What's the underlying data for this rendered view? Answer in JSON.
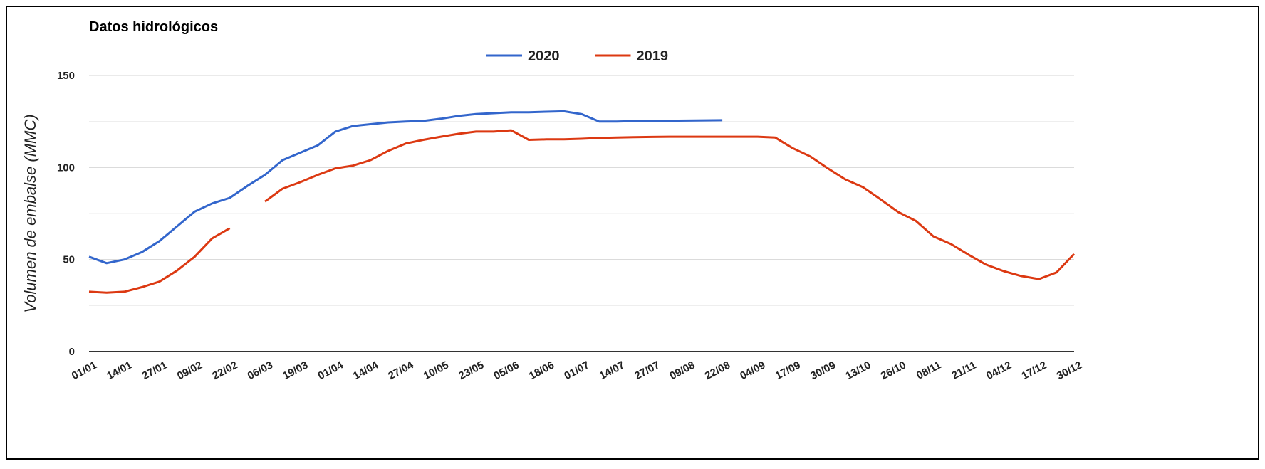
{
  "chart_data": {
    "type": "line",
    "title": "Datos hidrológicos",
    "y_label": "Volumen de embalse (MMC)",
    "categories": [
      "01/01",
      null,
      "14/01",
      null,
      "27/01",
      null,
      "09/02",
      null,
      "22/02",
      null,
      "06/03",
      null,
      "19/03",
      null,
      "01/04",
      null,
      "14/04",
      null,
      "27/04",
      null,
      "10/05",
      null,
      "23/05",
      null,
      "05/06",
      null,
      "18/06",
      null,
      "01/07",
      null,
      "14/07",
      null,
      "27/07",
      null,
      "09/08",
      null,
      "22/08",
      null,
      "04/09",
      null,
      "17/09",
      null,
      "30/09",
      null,
      "13/10",
      null,
      "26/10",
      null,
      "08/11",
      null,
      "21/11",
      null,
      "04/12",
      null,
      "17/12",
      null,
      "30/12"
    ],
    "series": [
      {
        "name": "2020",
        "color": "#3366cc",
        "values": [
          51.5,
          48,
          50,
          54,
          60,
          68,
          76,
          80.5,
          83.5,
          90,
          96,
          104,
          108,
          112,
          119.5,
          122.5,
          123.5,
          124.5,
          125,
          125.3,
          126.5,
          128,
          129,
          129.5,
          130,
          130,
          130.3,
          130.5,
          129,
          125,
          125,
          125.2,
          125.3,
          125.4,
          125.5,
          125.6,
          125.7,
          null,
          null,
          null,
          null,
          null,
          null,
          null,
          null,
          null,
          null,
          null,
          null,
          null,
          null,
          null,
          null,
          null,
          null,
          null,
          null
        ]
      },
      {
        "name": "2019",
        "color": "#dc3912",
        "values": [
          32.5,
          32,
          32.5,
          35,
          38,
          44,
          51.5,
          61.5,
          67,
          null,
          81.5,
          88.5,
          92,
          96,
          99.5,
          101,
          104,
          109,
          113,
          115,
          116.7,
          118.3,
          119.5,
          119.5,
          120.2,
          115,
          115.3,
          115.3,
          115.6,
          116,
          116.3,
          116.5,
          116.6,
          116.7,
          116.7,
          116.7,
          116.7,
          116.7,
          116.7,
          116.3,
          110.5,
          106,
          99.5,
          93.5,
          89.3,
          82.7,
          75.8,
          71,
          62.6,
          58.4,
          52.6,
          47.2,
          43.7,
          41,
          39.4,
          43,
          53
        ]
      }
    ],
    "ylim": [
      0,
      150
    ],
    "yticks": [
      0,
      50,
      100,
      150
    ],
    "minor_yticks": [
      25,
      75,
      125
    ],
    "grid": true,
    "legend": "top"
  }
}
